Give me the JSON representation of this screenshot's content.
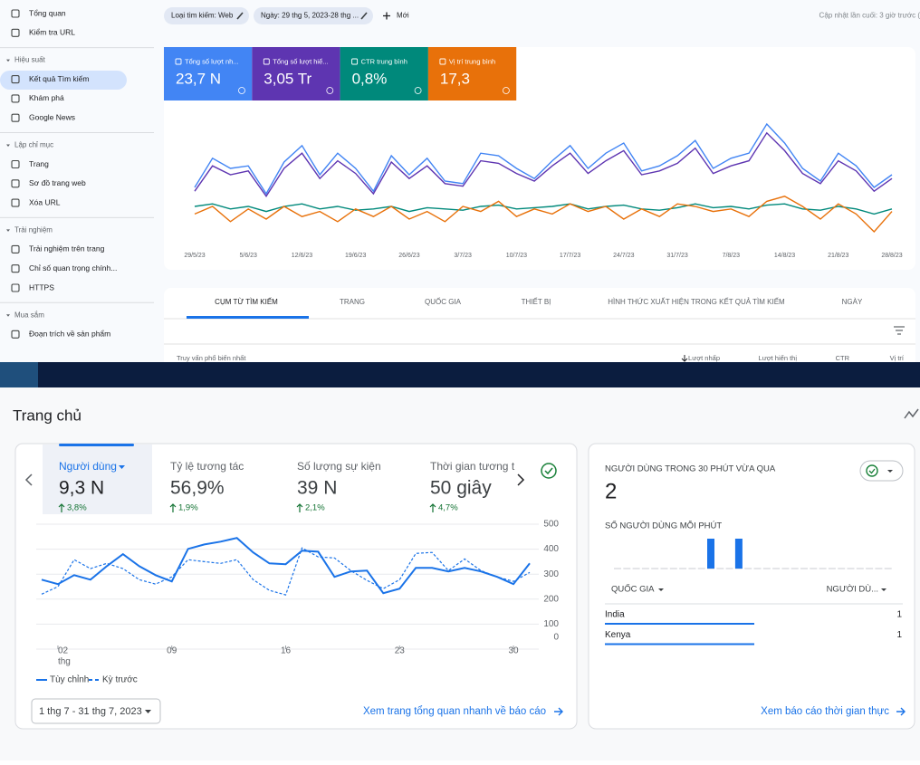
{
  "search_console": {
    "sidebar": [
      {
        "items": [
          "Tổng quan",
          "Kiểm tra URL"
        ]
      },
      {
        "heading": "Hiệu suất",
        "items": [
          "Kết quả Tìm kiếm",
          "Khám phá",
          "Google News"
        ]
      },
      {
        "heading": "Lập chỉ mục",
        "items": [
          "Trang",
          "Sơ đồ trang web",
          "Xóa URL"
        ]
      },
      {
        "heading": "Trải nghiệm",
        "items": [
          "Trải nghiệm trên trang",
          "Chỉ số quan trọng chính...",
          "HTTPS"
        ]
      },
      {
        "heading": "Mua sắm",
        "items": [
          "Đoạn trích về sản phẩm"
        ]
      }
    ],
    "filters": [
      "Loại tìm kiếm: Web",
      "Ngày: 29 thg 5, 2023-28 thg ..."
    ],
    "new_filter": "Mới",
    "last_updated": "Cập nhật lần cuối: 3 giờ trước (",
    "chart_data": {
      "type": "line",
      "x_labels": [
        "29/5/23",
        "5/6/23",
        "12/6/23",
        "19/6/23",
        "26/6/23",
        "3/7/23",
        "10/7/23",
        "17/7/23",
        "24/7/23",
        "31/7/23",
        "7/8/23",
        "14/8/23",
        "21/8/23",
        "28/8/23"
      ],
      "ylim": [
        0,
        100
      ],
      "series": [
        {
          "name": "Tổng số lượt nh...",
          "summary": "23,7 N",
          "color": "#4285f4",
          "values": [
            45,
            68,
            60,
            62,
            40,
            65,
            78,
            55,
            72,
            60,
            42,
            70,
            55,
            68,
            50,
            48,
            72,
            70,
            60,
            52,
            66,
            78,
            60,
            72,
            80,
            58,
            62,
            70,
            82,
            60,
            68,
            72,
            95,
            80,
            60,
            50,
            72,
            62,
            45,
            55
          ]
        },
        {
          "name": "Tổng số lượt hiể...",
          "summary": "3,05 Tr",
          "color": "#5e35b1",
          "values": [
            42,
            62,
            55,
            58,
            38,
            60,
            72,
            52,
            66,
            56,
            40,
            65,
            52,
            62,
            48,
            46,
            66,
            64,
            56,
            50,
            62,
            72,
            56,
            66,
            74,
            55,
            58,
            64,
            76,
            56,
            62,
            66,
            88,
            74,
            56,
            48,
            66,
            58,
            42,
            52
          ]
        },
        {
          "name": "CTR trung bình",
          "summary": "0,8%",
          "color": "#00897b",
          "values": [
            30,
            32,
            28,
            30,
            26,
            30,
            32,
            28,
            30,
            27,
            28,
            30,
            26,
            29,
            28,
            27,
            30,
            31,
            28,
            29,
            30,
            32,
            28,
            30,
            31,
            28,
            27,
            29,
            32,
            29,
            30,
            28,
            31,
            32,
            28,
            27,
            30,
            28,
            24,
            28
          ]
        },
        {
          "name": "Vị trí trung bình",
          "summary": "17,3",
          "color": "#e8710a",
          "values": [
            24,
            30,
            18,
            28,
            20,
            30,
            22,
            26,
            18,
            28,
            22,
            30,
            20,
            26,
            18,
            30,
            26,
            34,
            22,
            28,
            24,
            32,
            26,
            30,
            20,
            28,
            22,
            32,
            30,
            26,
            28,
            22,
            34,
            38,
            30,
            20,
            32,
            24,
            10,
            26
          ]
        }
      ]
    },
    "tabs": [
      "CỤM TỪ TÌM KIẾM",
      "TRANG",
      "QUỐC GIA",
      "THIẾT BỊ",
      "HÌNH THỨC XUẤT HIỆN TRONG KẾT QUẢ TÌM KIẾM",
      "NGÀY"
    ],
    "table_header": [
      "Truy vấn phổ biến nhất",
      "Lượt nhấp",
      "Lượt hiển thị",
      "CTR",
      "Vị trí"
    ]
  },
  "analytics": {
    "title": "Trang chủ",
    "metrics": [
      {
        "label": "Người dùng",
        "value": "9,3 N",
        "change": "3,8%"
      },
      {
        "label": "Tỷ lệ tương tác",
        "value": "56,9%",
        "change": "1,9%"
      },
      {
        "label": "Số lượng sự kiện",
        "value": "39 N",
        "change": "2,1%"
      },
      {
        "label": "Thời gian tương t",
        "value": "50 giây",
        "change": "4,7%"
      }
    ],
    "chart_data": {
      "type": "line",
      "x": [
        1,
        2,
        3,
        4,
        5,
        6,
        7,
        8,
        9,
        10,
        11,
        12,
        13,
        14,
        15,
        16,
        17,
        18,
        19,
        20,
        21,
        22,
        23,
        24,
        25,
        26,
        27,
        28,
        29,
        30,
        31
      ],
      "xlim": [
        1,
        31
      ],
      "xticks": [
        {
          "value": 2,
          "label": "02"
        },
        {
          "value": 9,
          "label": "09"
        },
        16,
        23,
        30
      ],
      "x_unit": "thg",
      "ylim": [
        0,
        500
      ],
      "yticks": [
        0,
        100,
        200,
        300,
        400,
        500
      ],
      "grid": true,
      "series": [
        {
          "name": "Tùy chỉnh",
          "color": "#1a73e8",
          "dashed": false,
          "values": [
            278,
            260,
            296,
            278,
            332,
            380,
            332,
            296,
            271,
            401,
            419,
            430,
            445,
            387,
            343,
            340,
            394,
            390,
            289,
            311,
            314,
            224,
            242,
            325,
            325,
            311,
            325,
            311,
            289,
            260,
            343
          ]
        },
        {
          "name": "Kỳ trước",
          "color": "#1a73e8",
          "dashed": true,
          "values": [
            220,
            250,
            358,
            322,
            343,
            322,
            278,
            260,
            289,
            358,
            350,
            343,
            358,
            278,
            235,
            217,
            405,
            369,
            365,
            314,
            275,
            242,
            278,
            383,
            387,
            314,
            361,
            314,
            289,
            271,
            307
          ]
        }
      ]
    },
    "date_range": "1 thg 7 - 31 thg 7, 2023",
    "overview_link": "Xem trang tổng quan nhanh về báo cáo",
    "realtime": {
      "title": "NGƯỜI DÙNG TRONG 30 PHÚT VỪA QUA",
      "value": "2",
      "subtitle": "SỐ NGƯỜI DÙNG MỖI PHÚT",
      "chart_data": {
        "type": "bar",
        "color": "#1a73e8",
        "ylim": [
          0,
          1
        ],
        "values": [
          0,
          0,
          0,
          0,
          0,
          0,
          0,
          0,
          0,
          0,
          1,
          0,
          0,
          1,
          0,
          0,
          0,
          0,
          0,
          0,
          0,
          0,
          0,
          0,
          0,
          0,
          0,
          0,
          0,
          0
        ]
      },
      "table": {
        "columns": [
          "QUỐC GIA",
          "NGƯỜI DÙ..."
        ],
        "rows": [
          {
            "country": "India",
            "users": 1
          },
          {
            "country": "Kenya",
            "users": 1
          }
        ]
      },
      "link": "Xem báo cáo thời gian thực"
    }
  }
}
